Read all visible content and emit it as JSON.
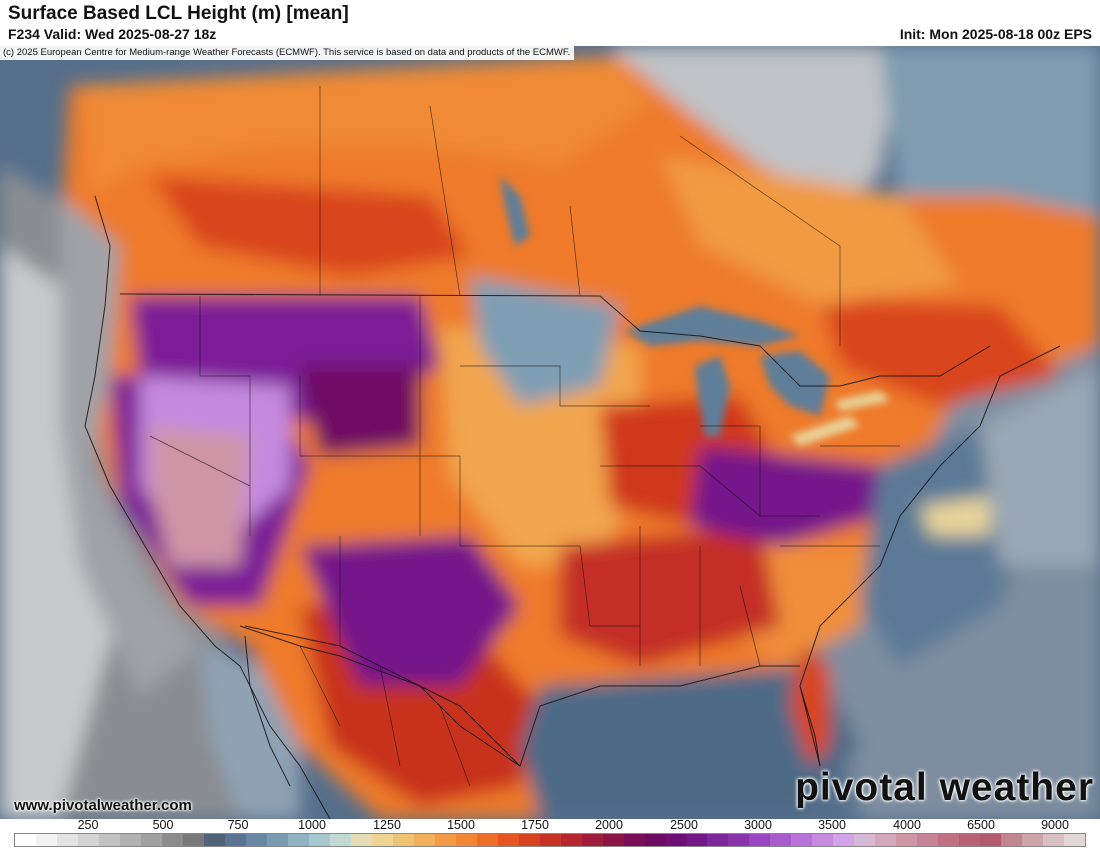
{
  "header": {
    "title": "Surface Based LCL Height (m) [mean]",
    "valid": "F234 Valid: Wed 2025-08-27 18z",
    "init": "Init: Mon 2025-08-18 00z EPS"
  },
  "copyright": "(c) 2025 European Centre for Medium-range Weather Forecasts (ECMWF). This service is based on data and products of the ECMWF.",
  "website": "www.pivotalweather.com",
  "logo": "pivotal weather",
  "colorbar": {
    "ticks": [
      "250",
      "500",
      "750",
      "1000",
      "1250",
      "1500",
      "1750",
      "2000",
      "2500",
      "3000",
      "3500",
      "4000",
      "6500",
      "9000"
    ],
    "colors": [
      "#ffffff",
      "#f2f2f2",
      "#e3e3e3",
      "#d3d3d3",
      "#c2c2c2",
      "#b1b1b1",
      "#a0a0a0",
      "#8c8c8c",
      "#787878",
      "#52627a",
      "#5b7393",
      "#6986a4",
      "#7a9cb2",
      "#8fb2c0",
      "#a5c7ce",
      "#c2d8d3",
      "#e7ddb4",
      "#ecd38f",
      "#efc374",
      "#f2b05c",
      "#f39c47",
      "#f28534",
      "#ee6e27",
      "#e65520",
      "#d94120",
      "#c73326",
      "#b5262f",
      "#a01d3c",
      "#8c1448",
      "#7a0d55",
      "#6e0a63",
      "#6c0f76",
      "#74198a",
      "#7e269c",
      "#8a34ae",
      "#9846bf",
      "#a85bcd",
      "#b772d8",
      "#c58ae0",
      "#d2a3e7",
      "#d7b8d6",
      "#d6a7b8",
      "#cf95a6",
      "#c78295",
      "#bf7085",
      "#b86176",
      "#b35a6e",
      "#c08590",
      "#cda4ac",
      "#d9bfc4",
      "#e3d6d8"
    ]
  }
}
